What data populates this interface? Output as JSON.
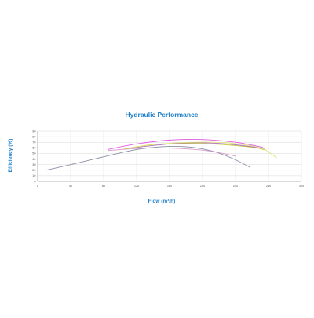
{
  "chart_data": {
    "type": "line",
    "title": "Hydraulic Performance",
    "xlabel": "Flow (m³/h)",
    "ylabel": "Efficiency (%)",
    "xlim": [
      0,
      320
    ],
    "ylim": [
      0,
      90
    ],
    "xticks": [
      "0",
      "40",
      "80",
      "120",
      "160",
      "200",
      "240",
      "280",
      "320"
    ],
    "yticks": [
      "0",
      "10",
      "20",
      "30",
      "40",
      "50",
      "60",
      "70",
      "80",
      "90"
    ],
    "grid": true,
    "series": [
      {
        "color": "#8a8fa8",
        "x": [
          10,
          40,
          80,
          120,
          150,
          180,
          210,
          235,
          258
        ],
        "y": [
          20,
          30,
          44,
          57,
          62,
          62,
          55,
          42,
          25
        ]
      },
      {
        "color": "#d9a0c8",
        "x": [
          85,
          110,
          140,
          170,
          200,
          225,
          240
        ],
        "y": [
          55,
          58,
          60,
          59,
          56,
          50,
          45
        ]
      },
      {
        "color": "#c9c93a",
        "x": [
          105,
          140,
          175,
          210,
          240,
          265,
          277
        ],
        "y": [
          58,
          66,
          68,
          67,
          64,
          60,
          56
        ]
      },
      {
        "color": "#a86fbd",
        "x": [
          115,
          145,
          180,
          220,
          255,
          275
        ],
        "y": [
          60,
          65,
          69,
          68,
          63,
          58
        ]
      },
      {
        "color": "#e4e47a",
        "x": [
          115,
          150,
          190,
          230,
          270,
          290
        ],
        "y": [
          61,
          67,
          70,
          69,
          60,
          42
        ]
      },
      {
        "color": "#e05be0",
        "x": [
          85,
          120,
          160,
          200,
          240,
          273
        ],
        "y": [
          57,
          67,
          74,
          75,
          70,
          61
        ]
      }
    ]
  }
}
